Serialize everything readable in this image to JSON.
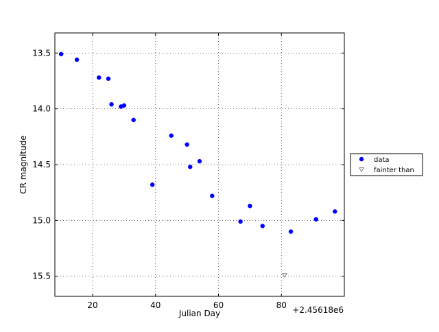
{
  "chart_data": {
    "type": "scatter",
    "title": "",
    "xlabel": "Julian Day",
    "ylabel": "CR magnitude",
    "x_offset_label": "+2.45618e6",
    "xlim": [
      8,
      100
    ],
    "ylim": [
      15.68,
      13.32
    ],
    "y_inverted": true,
    "grid": true,
    "legend_placement": "outside-right",
    "x_ticks": [
      {
        "value": 20,
        "label": "20"
      },
      {
        "value": 40,
        "label": "40"
      },
      {
        "value": 60,
        "label": "60"
      },
      {
        "value": 80,
        "label": "80"
      }
    ],
    "y_ticks": [
      {
        "value": 13.5,
        "label": "13.5"
      },
      {
        "value": 14.0,
        "label": "14.0"
      },
      {
        "value": 14.5,
        "label": "14.5"
      },
      {
        "value": 15.0,
        "label": "15.0"
      },
      {
        "value": 15.5,
        "label": "15.5"
      }
    ],
    "series": [
      {
        "name": "data",
        "marker": "circle",
        "color": "#0000ff",
        "points": [
          {
            "x": 10,
            "y": 13.51
          },
          {
            "x": 15,
            "y": 13.56
          },
          {
            "x": 22,
            "y": 13.72
          },
          {
            "x": 25,
            "y": 13.73
          },
          {
            "x": 26,
            "y": 13.96
          },
          {
            "x": 29,
            "y": 13.98
          },
          {
            "x": 30,
            "y": 13.97
          },
          {
            "x": 33,
            "y": 14.1
          },
          {
            "x": 39,
            "y": 14.68
          },
          {
            "x": 45,
            "y": 14.24
          },
          {
            "x": 50,
            "y": 14.32
          },
          {
            "x": 51,
            "y": 14.52
          },
          {
            "x": 54,
            "y": 14.47
          },
          {
            "x": 58,
            "y": 14.78
          },
          {
            "x": 67,
            "y": 15.01
          },
          {
            "x": 70,
            "y": 14.87
          },
          {
            "x": 74,
            "y": 15.05
          },
          {
            "x": 83,
            "y": 15.1
          },
          {
            "x": 91,
            "y": 14.99
          },
          {
            "x": 97,
            "y": 14.92
          }
        ]
      },
      {
        "name": "fainter than",
        "marker": "triangle-down",
        "color": "#808080",
        "points": [
          {
            "x": 81,
            "y": 15.49
          }
        ]
      }
    ]
  }
}
